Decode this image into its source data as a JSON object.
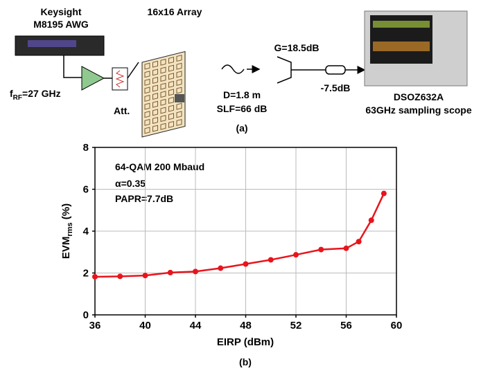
{
  "diagram": {
    "awg": [
      "Keysight",
      "M8195 AWG"
    ],
    "array": "16x16 Array",
    "frequency": [
      "f",
      "RF",
      "=27 GHz"
    ],
    "attenuator": "Att.",
    "gain": "G=18.5dB",
    "cable_loss": "-7.5dB",
    "distance": "D=1.8 m",
    "slf": "SLF=66 dB",
    "scope": [
      "DSOZ632A",
      "63GHz sampling scope"
    ],
    "caption": "(a)"
  },
  "chart_data": {
    "type": "line",
    "caption": "(b)",
    "x_label": "EIRP (dBm)",
    "y_label": [
      "EVM",
      "rms",
      " (%)"
    ],
    "annotations": [
      "64-QAM 200 Mbaud",
      "α=0.35",
      "PAPR=7.7dB"
    ],
    "x": [
      36,
      38,
      40,
      42,
      44,
      46,
      48,
      50,
      52,
      54,
      56,
      57,
      58,
      59
    ],
    "series": [
      {
        "color": "#e8141c",
        "values": [
          1.82,
          1.84,
          1.88,
          2.02,
          2.07,
          2.23,
          2.43,
          2.63,
          2.87,
          3.12,
          3.18,
          3.5,
          4.52,
          5.8
        ]
      }
    ],
    "xlim": [
      36,
      60
    ],
    "xticks": [
      36,
      40,
      44,
      48,
      52,
      56,
      60
    ],
    "ylim": [
      0,
      8
    ],
    "yticks": [
      0,
      2,
      4,
      6,
      8
    ],
    "grid": true
  }
}
